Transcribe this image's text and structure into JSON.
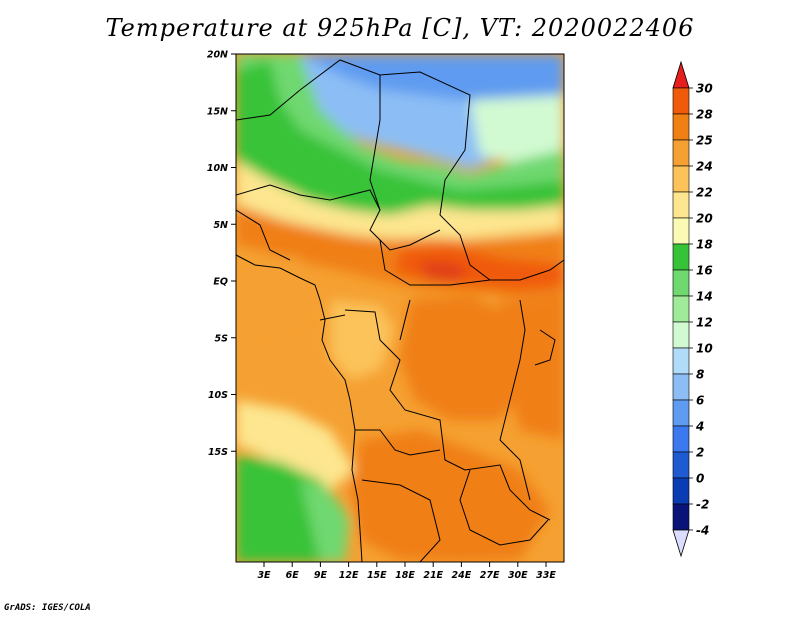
{
  "title": "Temperature at 925hPa [C], VT: 2020022406",
  "credit": "GrADS: IGES/COLA",
  "map": {
    "lat_labels": [
      "20N",
      "15N",
      "10N",
      "5N",
      "EQ",
      "5S",
      "10S",
      "15S"
    ],
    "lat_values": [
      20,
      15,
      10,
      5,
      0,
      -5,
      -10,
      -15
    ],
    "lon_labels": [
      "3E",
      "6E",
      "9E",
      "12E",
      "15E",
      "18E",
      "21E",
      "24E",
      "27E",
      "30E",
      "33E"
    ],
    "lon_values": [
      3,
      6,
      9,
      12,
      15,
      18,
      21,
      24,
      27,
      30,
      33
    ]
  },
  "colorbar": {
    "labels": [
      "30",
      "28",
      "25",
      "24",
      "22",
      "20",
      "18",
      "16",
      "14",
      "12",
      "10",
      "8",
      "6",
      "4",
      "2",
      "0",
      "-2",
      "-4"
    ],
    "colors": [
      "#f03c1e",
      "#f05a0a",
      "#f07f14",
      "#f5a032",
      "#fbc35a",
      "#fde68f",
      "#fbfab4",
      "#37c337",
      "#6fd86f",
      "#a0eb9a",
      "#d2fad2",
      "#b0dcfa",
      "#8cbef5",
      "#5f9bf0",
      "#3c78f0",
      "#1e5ad2",
      "#0a3cb4",
      "#0a1478"
    ],
    "top_color": "#e61e1e",
    "bottom_color": "#dcdcff"
  }
}
